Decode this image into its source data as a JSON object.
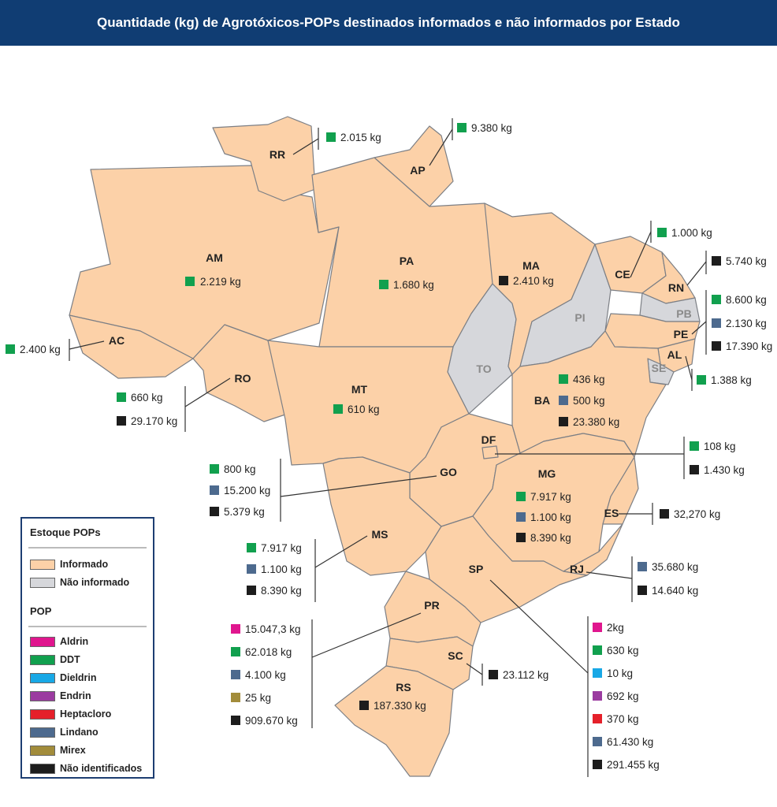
{
  "title": "Quantidade (kg) de Agrotóxicos-POPs destinados informados e não informados por Estado",
  "colors": {
    "informado": "#fcd1a8",
    "nao_informado": "#d6d7db",
    "Aldrin": "#e0168e",
    "DDT": "#11a04e",
    "Dieldrin": "#18a8e6",
    "Endrin": "#9b3ba0",
    "Heptacloro": "#e5202a",
    "Lindano": "#4d6a8e",
    "Mirex": "#a28c3b",
    "Nao_identificados": "#1d1d1d"
  },
  "legend": {
    "title1": "Estoque POPs",
    "items1": [
      {
        "label": "Informado",
        "color": "#fcd1a8"
      },
      {
        "label": "Não informado",
        "color": "#d6d7db"
      }
    ],
    "title2": "POP",
    "items2": [
      {
        "label": "Aldrin",
        "color": "#e0168e"
      },
      {
        "label": "DDT",
        "color": "#11a04e"
      },
      {
        "label": "Dieldrin",
        "color": "#18a8e6"
      },
      {
        "label": "Endrin",
        "color": "#9b3ba0"
      },
      {
        "label": "Heptacloro",
        "color": "#e5202a"
      },
      {
        "label": "Lindano",
        "color": "#4d6a8e"
      },
      {
        "label": "Mirex",
        "color": "#a28c3b"
      },
      {
        "label": "Não identificados",
        "color": "#1d1d1d"
      }
    ]
  },
  "states": {
    "RR": {
      "code": "RR",
      "values": [
        {
          "pop": "DDT",
          "text": "2.015 kg"
        }
      ]
    },
    "AP": {
      "code": "AP",
      "values": [
        {
          "pop": "DDT",
          "text": "9.380 kg"
        }
      ]
    },
    "AM": {
      "code": "AM",
      "values": [
        {
          "pop": "DDT",
          "text": "2.219 kg"
        }
      ]
    },
    "PA": {
      "code": "PA",
      "values": [
        {
          "pop": "DDT",
          "text": "1.680 kg"
        }
      ]
    },
    "MA": {
      "code": "MA",
      "values": [
        {
          "pop": "Nao_identificados",
          "text": "2.410 kg"
        }
      ]
    },
    "CE": {
      "code": "CE",
      "values": [
        {
          "pop": "DDT",
          "text": "1.000 kg"
        }
      ]
    },
    "RN": {
      "code": "RN",
      "values": [
        {
          "pop": "Nao_identificados",
          "text": "5.740 kg"
        }
      ]
    },
    "PB": {
      "code": "PB",
      "values": []
    },
    "PE": {
      "code": "PE",
      "values": [
        {
          "pop": "DDT",
          "text": "8.600 kg"
        },
        {
          "pop": "Lindano",
          "text": "2.130 kg"
        },
        {
          "pop": "Nao_identificados",
          "text": "17.390 kg"
        }
      ]
    },
    "AL": {
      "code": "AL",
      "values": [
        {
          "pop": "DDT",
          "text": "1.388 kg"
        }
      ]
    },
    "SE": {
      "code": "SE",
      "values": []
    },
    "PI": {
      "code": "PI",
      "values": []
    },
    "TO": {
      "code": "TO",
      "values": []
    },
    "AC": {
      "code": "AC",
      "values": [
        {
          "pop": "DDT",
          "text": "2.400 kg"
        }
      ]
    },
    "RO": {
      "code": "RO",
      "values": [
        {
          "pop": "DDT",
          "text": "660 kg"
        },
        {
          "pop": "Nao_identificados",
          "text": "29.170 kg"
        }
      ]
    },
    "MT": {
      "code": "MT",
      "values": [
        {
          "pop": "DDT",
          "text": "610 kg"
        }
      ]
    },
    "BA": {
      "code": "BA",
      "values": [
        {
          "pop": "DDT",
          "text": "436 kg"
        },
        {
          "pop": "Lindano",
          "text": "500 kg"
        },
        {
          "pop": "Nao_identificados",
          "text": "23.380 kg"
        }
      ]
    },
    "DF": {
      "code": "DF",
      "values": [
        {
          "pop": "DDT",
          "text": "108 kg"
        },
        {
          "pop": "Nao_identificados",
          "text": "1.430 kg"
        }
      ]
    },
    "GO": {
      "code": "GO",
      "values": [
        {
          "pop": "DDT",
          "text": "800 kg"
        },
        {
          "pop": "Lindano",
          "text": "15.200 kg"
        },
        {
          "pop": "Nao_identificados",
          "text": "5.379 kg"
        }
      ]
    },
    "MG": {
      "code": "MG",
      "values": [
        {
          "pop": "DDT",
          "text": "7.917 kg"
        },
        {
          "pop": "Lindano",
          "text": "1.100 kg"
        },
        {
          "pop": "Nao_identificados",
          "text": "8.390 kg"
        }
      ]
    },
    "ES": {
      "code": "ES",
      "values": [
        {
          "pop": "Nao_identificados",
          "text": "32,270 kg"
        }
      ]
    },
    "MS": {
      "code": "MS",
      "values": [
        {
          "pop": "DDT",
          "text": "7.917 kg"
        },
        {
          "pop": "Lindano",
          "text": "1.100 kg"
        },
        {
          "pop": "Nao_identificados",
          "text": "8.390 kg"
        }
      ]
    },
    "RJ": {
      "code": "RJ",
      "values": [
        {
          "pop": "Lindano",
          "text": "35.680 kg"
        },
        {
          "pop": "Nao_identificados",
          "text": "14.640 kg"
        }
      ]
    },
    "SP": {
      "code": "SP",
      "values": [
        {
          "pop": "Aldrin",
          "text": "2kg"
        },
        {
          "pop": "DDT",
          "text": "630 kg"
        },
        {
          "pop": "Dieldrin",
          "text": "10 kg"
        },
        {
          "pop": "Endrin",
          "text": "692 kg"
        },
        {
          "pop": "Heptacloro",
          "text": "370 kg"
        },
        {
          "pop": "Lindano",
          "text": "61.430 kg"
        },
        {
          "pop": "Nao_identificados",
          "text": "291.455 kg"
        }
      ]
    },
    "PR": {
      "code": "PR",
      "values": [
        {
          "pop": "Aldrin",
          "text": "15.047,3 kg"
        },
        {
          "pop": "DDT",
          "text": "62.018 kg"
        },
        {
          "pop": "Lindano",
          "text": "4.100 kg"
        },
        {
          "pop": "Mirex",
          "text": "25 kg"
        },
        {
          "pop": "Nao_identificados",
          "text": "909.670 kg"
        }
      ]
    },
    "SC": {
      "code": "SC",
      "values": [
        {
          "pop": "Nao_identificados",
          "text": "23.112 kg"
        }
      ]
    },
    "RS": {
      "code": "RS",
      "values": [
        {
          "pop": "Nao_identificados",
          "text": "187.330 kg"
        }
      ]
    }
  }
}
